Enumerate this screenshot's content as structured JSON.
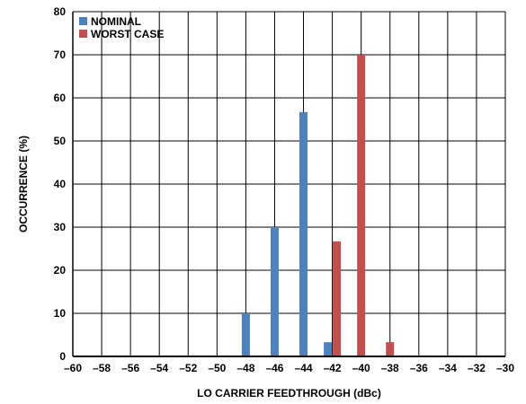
{
  "chart_data": {
    "type": "bar",
    "xlabel": "LO CARRIER FEEDTHROUGH (dBc)",
    "ylabel": "OCCURRENCE (%)",
    "xlim": [
      -60,
      -30
    ],
    "ylim": [
      0,
      80
    ],
    "x_ticks": [
      -60,
      -58,
      -56,
      -54,
      -52,
      -50,
      -48,
      -46,
      -44,
      -42,
      -40,
      -38,
      -36,
      -34,
      -32,
      -30
    ],
    "x_tick_labels": [
      "–60",
      "–58",
      "–56",
      "–54",
      "–52",
      "–50",
      "–48",
      "–46",
      "–44",
      "–42",
      "–40",
      "–38",
      "–36",
      "–34",
      "–32",
      "–30"
    ],
    "y_ticks": [
      0,
      10,
      20,
      30,
      40,
      50,
      60,
      70,
      80
    ],
    "y_tick_labels": [
      "0",
      "10",
      "20",
      "30",
      "40",
      "50",
      "60",
      "70",
      "80"
    ],
    "grid": true,
    "legend_position": "top-left",
    "series": [
      {
        "name": "NOMINAL",
        "color": "#4F81BD",
        "points": [
          {
            "x": -48,
            "y": 10
          },
          {
            "x": -46,
            "y": 30
          },
          {
            "x": -44,
            "y": 56.7
          },
          {
            "x": -42,
            "y": 3.3
          }
        ]
      },
      {
        "name": "WORST CASE",
        "color": "#C0504D",
        "points": [
          {
            "x": -42,
            "y": 26.7
          },
          {
            "x": -40,
            "y": 70
          },
          {
            "x": -38,
            "y": 3.3
          }
        ]
      }
    ]
  }
}
